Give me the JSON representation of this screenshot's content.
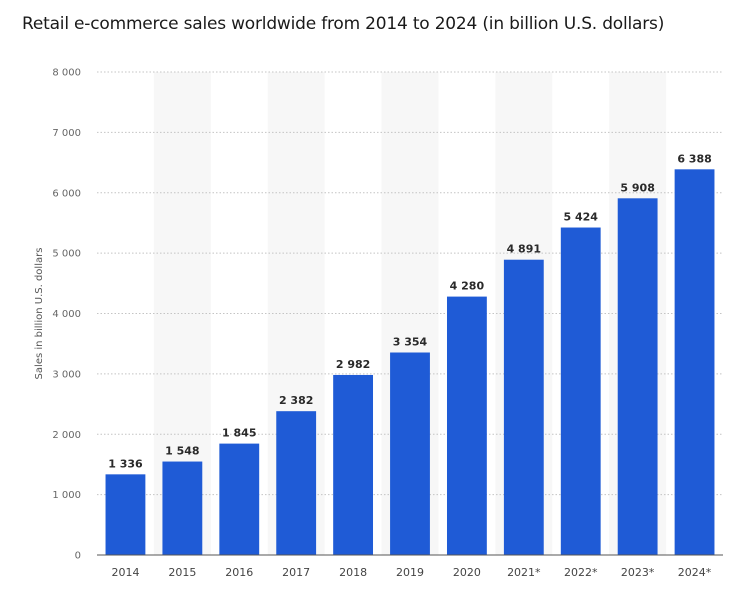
{
  "chart_data": {
    "type": "bar",
    "title": "Retail e-commerce sales worldwide from 2014 to 2024 (in billion U.S. dollars)",
    "ylabel": "Sales in billion U.S. dollars",
    "xlabel": "",
    "categories": [
      "2014",
      "2015",
      "2016",
      "2017",
      "2018",
      "2019",
      "2020",
      "2021*",
      "2022*",
      "2023*",
      "2024*"
    ],
    "values": [
      1336,
      1548,
      1845,
      2382,
      2982,
      3354,
      4280,
      4891,
      5424,
      5908,
      6388
    ],
    "value_labels": [
      "1 336",
      "1 548",
      "1 845",
      "2 382",
      "2 982",
      "3 354",
      "4 280",
      "4 891",
      "5 424",
      "5 908",
      "6 388"
    ],
    "ylim": [
      0,
      8000
    ],
    "yticks": [
      0,
      1000,
      2000,
      3000,
      4000,
      5000,
      6000,
      7000,
      8000
    ],
    "ytick_labels": [
      "0",
      "1 000",
      "2 000",
      "3 000",
      "4 000",
      "5 000",
      "6 000",
      "7 000",
      "8 000"
    ],
    "grid": true,
    "bar_color": "#1f5bd6",
    "alt_band_color": "#f7f7f7"
  }
}
